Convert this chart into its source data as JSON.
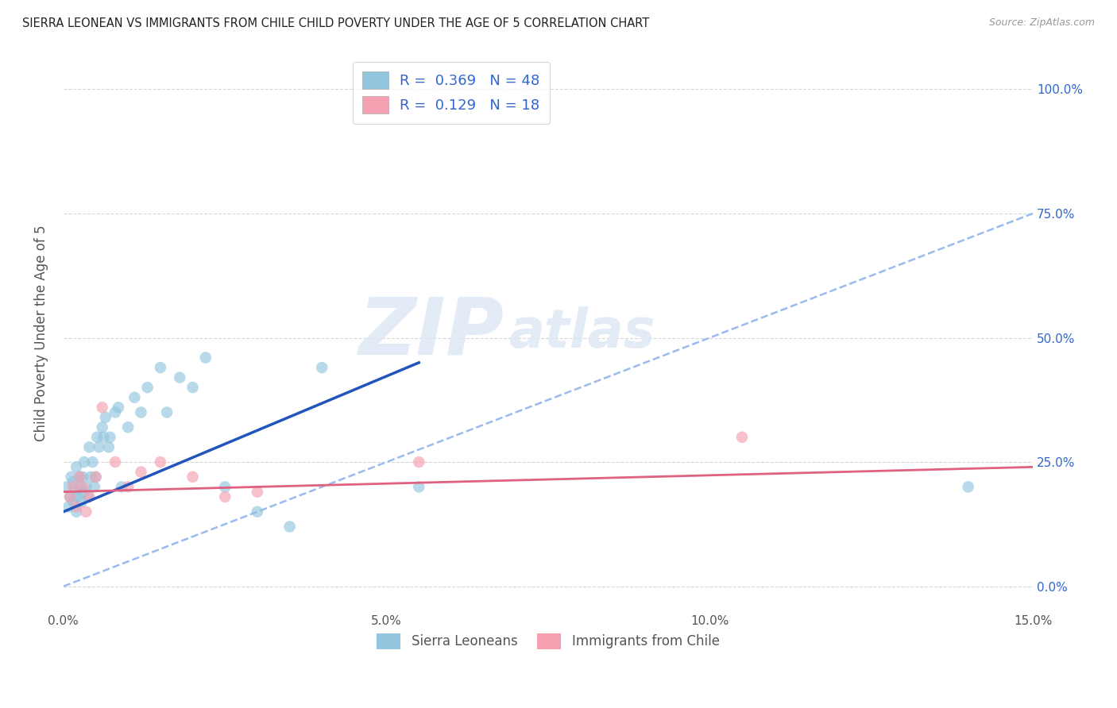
{
  "title": "SIERRA LEONEAN VS IMMIGRANTS FROM CHILE CHILD POVERTY UNDER THE AGE OF 5 CORRELATION CHART",
  "source": "Source: ZipAtlas.com",
  "ylabel": "Child Poverty Under the Age of 5",
  "xlim": [
    0.0,
    15.0
  ],
  "ylim": [
    -5.0,
    107.0
  ],
  "legend_label1": "R =  0.369   N = 48",
  "legend_label2": "R =  0.129   N = 18",
  "legend_group1": "Sierra Leoneans",
  "legend_group2": "Immigrants from Chile",
  "color_blue": "#92c5de",
  "color_pink": "#f4a0b0",
  "line_blue": "#2255bb",
  "line_pink": "#e06080",
  "line_dashed_blue": "#99bbee",
  "watermark_zip": "ZIP",
  "watermark_atlas": "atlas",
  "blue_x": [
    0.05,
    0.08,
    0.1,
    0.12,
    0.15,
    0.15,
    0.18,
    0.2,
    0.2,
    0.22,
    0.25,
    0.25,
    0.28,
    0.3,
    0.3,
    0.32,
    0.35,
    0.38,
    0.4,
    0.42,
    0.45,
    0.48,
    0.5,
    0.52,
    0.55,
    0.6,
    0.62,
    0.65,
    0.7,
    0.72,
    0.8,
    0.85,
    0.9,
    1.0,
    1.1,
    1.2,
    1.3,
    1.5,
    1.6,
    1.8,
    2.0,
    2.2,
    2.5,
    3.0,
    3.5,
    4.0,
    5.5,
    14.0
  ],
  "blue_y": [
    20,
    16,
    18,
    22,
    17,
    21,
    19,
    15,
    24,
    18,
    20,
    22,
    17,
    19,
    22,
    25,
    20,
    18,
    28,
    22,
    25,
    20,
    22,
    30,
    28,
    32,
    30,
    34,
    28,
    30,
    35,
    36,
    20,
    32,
    38,
    35,
    40,
    44,
    35,
    42,
    40,
    46,
    20,
    15,
    12,
    44,
    20,
    20
  ],
  "pink_x": [
    0.1,
    0.15,
    0.2,
    0.25,
    0.3,
    0.35,
    0.4,
    0.5,
    0.6,
    0.8,
    1.0,
    1.2,
    1.5,
    2.0,
    2.5,
    3.0,
    5.5,
    10.5
  ],
  "pink_y": [
    18,
    20,
    16,
    22,
    20,
    15,
    18,
    22,
    36,
    25,
    20,
    23,
    25,
    22,
    18,
    19,
    25,
    30
  ],
  "blue_line_x0": 0.0,
  "blue_line_y0": 15.0,
  "blue_line_x1": 5.5,
  "blue_line_y1": 45.0,
  "pink_line_x0": 0.0,
  "pink_line_y0": 19.0,
  "pink_line_x1": 15.0,
  "pink_line_y1": 24.0,
  "dashed_line_x0": 0.0,
  "dashed_line_y0": 0.0,
  "dashed_line_x1": 15.0,
  "dashed_line_y1": 75.0
}
